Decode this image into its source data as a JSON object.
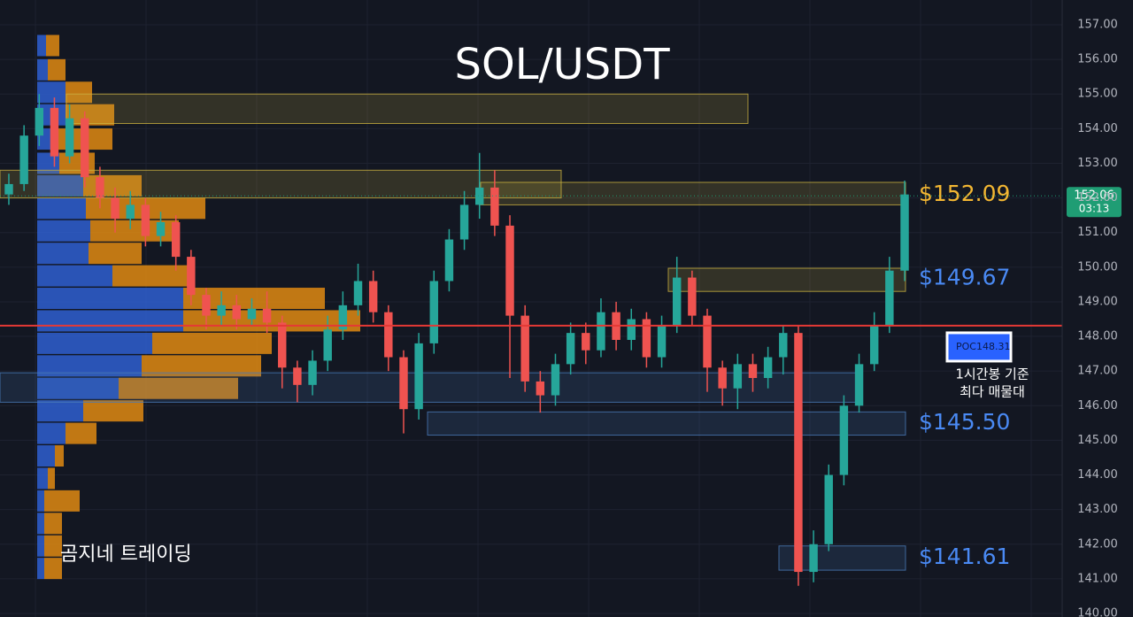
{
  "chart_data": {
    "type": "candlestick",
    "title": "SOL/USDT",
    "ylim": [
      140,
      157
    ],
    "yticks": [
      {
        "value": 157,
        "label": "157.00"
      },
      {
        "value": 156,
        "label": "156.00"
      },
      {
        "value": 155,
        "label": "155.00"
      },
      {
        "value": 154,
        "label": "154.00"
      },
      {
        "value": 153,
        "label": "153.00"
      },
      {
        "value": 152,
        "label": "152.00"
      },
      {
        "value": 151,
        "label": "151.00"
      },
      {
        "value": 150,
        "label": "150.00"
      },
      {
        "value": 149,
        "label": "149.00"
      },
      {
        "value": 148,
        "label": "148.00"
      },
      {
        "value": 147,
        "label": "147.00"
      },
      {
        "value": 146,
        "label": "146.00"
      },
      {
        "value": 145,
        "label": "145.00"
      },
      {
        "value": 144,
        "label": "144.00"
      },
      {
        "value": 143,
        "label": "143.00"
      },
      {
        "value": 142,
        "label": "142.00"
      },
      {
        "value": 141,
        "label": "141.00"
      },
      {
        "value": 140,
        "label": "140.00"
      }
    ],
    "grid": true,
    "up_color": "#26a69a",
    "down_color": "#ef5350",
    "open": [
      152.1,
      152.4,
      153.8,
      154.6,
      153.2,
      154.3,
      152.6,
      152.0,
      151.4,
      151.8,
      150.9,
      151.3,
      150.3,
      149.2,
      148.6,
      148.9,
      148.5,
      148.8,
      148.4,
      147.1,
      146.6,
      147.3,
      148.2,
      148.9,
      149.6,
      148.7,
      147.4,
      145.9,
      147.8,
      149.6,
      150.8,
      151.8,
      152.3,
      151.2,
      148.6,
      146.7,
      146.3,
      147.2,
      148.1,
      147.6,
      148.7,
      147.9,
      148.5,
      147.4,
      148.3,
      149.7,
      148.6,
      147.1,
      146.5,
      147.2,
      146.8,
      147.4,
      148.1,
      141.2,
      142.0,
      144.0,
      146.0,
      147.2,
      148.3,
      149.9
    ],
    "high": [
      152.7,
      154.1,
      155.0,
      154.9,
      154.7,
      154.5,
      152.9,
      152.3,
      152.2,
      152.0,
      151.6,
      151.5,
      150.5,
      149.4,
      149.3,
      149.2,
      149.1,
      149.3,
      148.6,
      147.3,
      147.6,
      148.6,
      149.3,
      150.1,
      149.9,
      148.9,
      147.6,
      148.1,
      149.9,
      151.1,
      152.2,
      153.3,
      152.8,
      151.5,
      148.9,
      147.0,
      147.5,
      148.4,
      148.4,
      149.1,
      149.0,
      148.8,
      148.7,
      148.6,
      150.3,
      149.9,
      148.8,
      147.3,
      147.5,
      147.5,
      147.7,
      148.3,
      148.3,
      142.4,
      144.3,
      146.3,
      147.5,
      148.7,
      150.3,
      152.5
    ],
    "low": [
      151.8,
      152.2,
      153.5,
      152.9,
      153.0,
      152.3,
      151.7,
      151.0,
      151.1,
      150.6,
      150.6,
      149.9,
      148.9,
      148.2,
      148.3,
      148.2,
      148.3,
      148.1,
      146.5,
      146.1,
      146.3,
      147.0,
      147.9,
      148.6,
      148.4,
      147.0,
      145.2,
      145.6,
      147.5,
      149.3,
      150.5,
      151.4,
      150.9,
      146.8,
      146.4,
      145.8,
      146.0,
      146.9,
      147.2,
      147.4,
      147.6,
      147.6,
      147.1,
      147.1,
      148.1,
      148.3,
      146.4,
      146.0,
      145.9,
      146.4,
      146.5,
      146.9,
      140.8,
      140.9,
      141.8,
      143.7,
      145.8,
      147.0,
      148.1,
      149.6
    ],
    "close": [
      152.4,
      153.8,
      154.6,
      153.2,
      154.3,
      152.6,
      152.0,
      151.4,
      151.8,
      150.9,
      151.3,
      150.3,
      149.2,
      148.6,
      148.9,
      148.5,
      148.8,
      148.4,
      147.1,
      146.6,
      147.3,
      148.2,
      148.9,
      149.6,
      148.7,
      147.4,
      145.9,
      147.8,
      149.6,
      150.8,
      151.8,
      152.3,
      151.2,
      148.6,
      146.7,
      146.3,
      147.2,
      148.1,
      147.6,
      148.7,
      147.9,
      148.5,
      147.4,
      148.3,
      149.7,
      148.6,
      147.1,
      146.5,
      147.2,
      146.8,
      147.4,
      148.1,
      141.2,
      142.0,
      144.0,
      146.0,
      147.2,
      148.3,
      149.9,
      152.1
    ],
    "volume_profile": {
      "prices": [
        156.4,
        155.7,
        155.05,
        154.4,
        153.7,
        153.0,
        152.35,
        151.7,
        151.05,
        150.4,
        149.75,
        149.1,
        148.45,
        147.8,
        147.15,
        146.5,
        145.85,
        145.2,
        144.55,
        143.9,
        143.25,
        142.6,
        141.95,
        141.3
      ],
      "series": [
        {
          "name": "buy",
          "color": "#2f5fd0",
          "values": [
            10,
            12,
            32,
            32,
            20,
            25,
            52,
            55,
            60,
            58,
            85,
            165,
            165,
            130,
            118,
            92,
            52,
            32,
            20,
            12,
            8,
            8,
            8,
            8
          ]
        },
        {
          "name": "sell",
          "color": "#e08a12",
          "values": [
            15,
            20,
            30,
            55,
            65,
            40,
            66,
            135,
            100,
            60,
            85,
            160,
            200,
            135,
            135,
            135,
            68,
            35,
            10,
            8,
            40,
            20,
            20,
            20
          ]
        }
      ]
    },
    "zones": [
      {
        "top": 155.0,
        "bottom": 154.15,
        "color": "#c9b040"
      },
      {
        "top": 152.8,
        "bottom": 152.0,
        "color": "#c9b040"
      },
      {
        "top": 152.45,
        "bottom": 151.8,
        "color": "#c9b040"
      },
      {
        "top": 149.97,
        "bottom": 149.3,
        "color": "#c9b040"
      },
      {
        "top": 146.95,
        "bottom": 146.1,
        "color": "#4a7ab8"
      },
      {
        "top": 145.82,
        "bottom": 145.15,
        "color": "#4a7ab8"
      },
      {
        "top": 141.95,
        "bottom": 141.25,
        "color": "#4a7ab8"
      }
    ],
    "levels": [
      {
        "value": 152.09,
        "label": "$152.09",
        "color": "#f2b632"
      },
      {
        "value": 149.67,
        "label": "$149.67",
        "color": "#4a8af4"
      },
      {
        "value": 145.5,
        "label": "$145.50",
        "color": "#4a8af4"
      },
      {
        "value": 141.61,
        "label": "$141.61",
        "color": "#4a8af4"
      }
    ],
    "poc": {
      "label": "POC",
      "value": 148.31,
      "color": "#e53935",
      "note": [
        "1시간봉 기준",
        "최다 매물대"
      ]
    },
    "last_price": {
      "value": 152.06,
      "countdown": "03:13",
      "color": "#1f9d74"
    },
    "watermark": "곰지네 트레이딩"
  }
}
